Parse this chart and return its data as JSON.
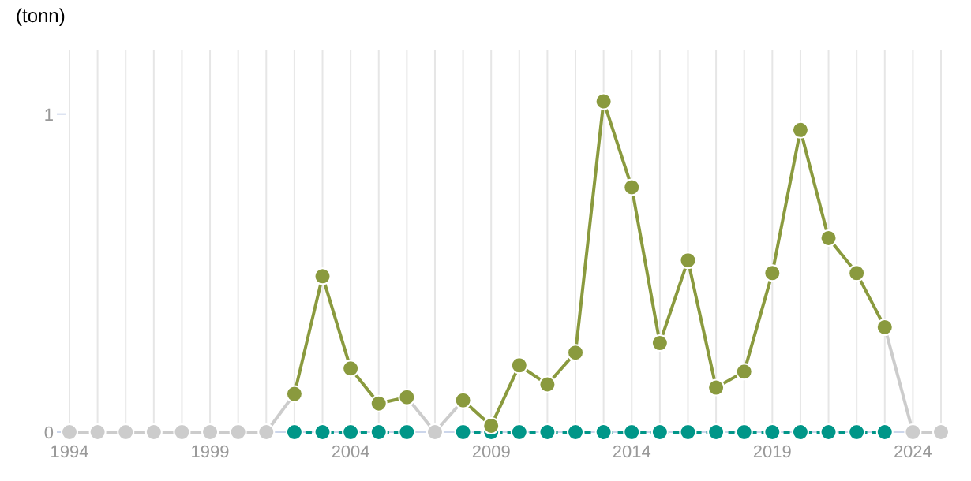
{
  "chart_data": {
    "type": "line",
    "ylabel": "(tonn)",
    "x": [
      1994,
      1995,
      1996,
      1997,
      1998,
      1999,
      2000,
      2001,
      2002,
      2003,
      2004,
      2005,
      2006,
      2007,
      2008,
      2009,
      2010,
      2011,
      2012,
      2013,
      2014,
      2015,
      2016,
      2017,
      2018,
      2019,
      2020,
      2021,
      2022,
      2023,
      2024,
      2025
    ],
    "series": [
      {
        "color": "#cccccc",
        "values": [
          0,
          0,
          0,
          0,
          0,
          0,
          0,
          0,
          0.12,
          null,
          null,
          null,
          0.11,
          0,
          0.1,
          null,
          null,
          null,
          null,
          null,
          null,
          null,
          null,
          null,
          null,
          null,
          null,
          null,
          null,
          0.33,
          0,
          0
        ]
      },
      {
        "color": "#009688",
        "line_style": "dashed",
        "values": [
          null,
          null,
          null,
          null,
          null,
          null,
          null,
          null,
          0,
          0,
          0,
          0,
          0,
          null,
          0,
          0,
          0,
          0,
          0,
          0,
          0,
          0,
          0,
          0,
          0,
          0,
          0,
          0,
          0,
          0,
          null,
          null
        ]
      },
      {
        "color": "#8a9a3e",
        "values": [
          null,
          null,
          null,
          null,
          null,
          null,
          null,
          null,
          0.12,
          0.49,
          0.2,
          0.09,
          0.11,
          null,
          0.1,
          0.02,
          0.21,
          0.15,
          0.25,
          1.04,
          0.77,
          0.28,
          0.54,
          0.14,
          0.19,
          0.5,
          0.95,
          0.61,
          0.5,
          0.33,
          null,
          null
        ]
      }
    ],
    "xlim": [
      1994,
      2025
    ],
    "ylim": [
      0,
      1.2
    ],
    "yticks": [
      0,
      1
    ],
    "xticks": [
      1994,
      {
        "value": 1995,
        "label": null
      },
      {
        "value": 1996,
        "label": null
      },
      {
        "value": 1997,
        "label": null
      },
      {
        "value": 1998,
        "label": null
      },
      1999,
      {
        "value": 2000,
        "label": null
      },
      {
        "value": 2001,
        "label": null
      },
      {
        "value": 2002,
        "label": null
      },
      {
        "value": 2003,
        "label": null
      },
      2004,
      {
        "value": 2005,
        "label": null
      },
      {
        "value": 2006,
        "label": null
      },
      {
        "value": 2007,
        "label": null
      },
      {
        "value": 2008,
        "label": null
      },
      2009,
      {
        "value": 2010,
        "label": null
      },
      {
        "value": 2011,
        "label": null
      },
      {
        "value": 2012,
        "label": null
      },
      {
        "value": 2013,
        "label": null
      },
      2014,
      {
        "value": 2015,
        "label": null
      },
      {
        "value": 2016,
        "label": null
      },
      {
        "value": 2017,
        "label": null
      },
      {
        "value": 2018,
        "label": null
      },
      2019,
      {
        "value": 2020,
        "label": null
      },
      {
        "value": 2021,
        "label": null
      },
      {
        "value": 2022,
        "label": null
      },
      {
        "value": 2023,
        "label": null
      },
      2024,
      {
        "value": 2025,
        "label": null
      }
    ],
    "grid": "x",
    "marker": "circle",
    "line_style": "solid"
  }
}
